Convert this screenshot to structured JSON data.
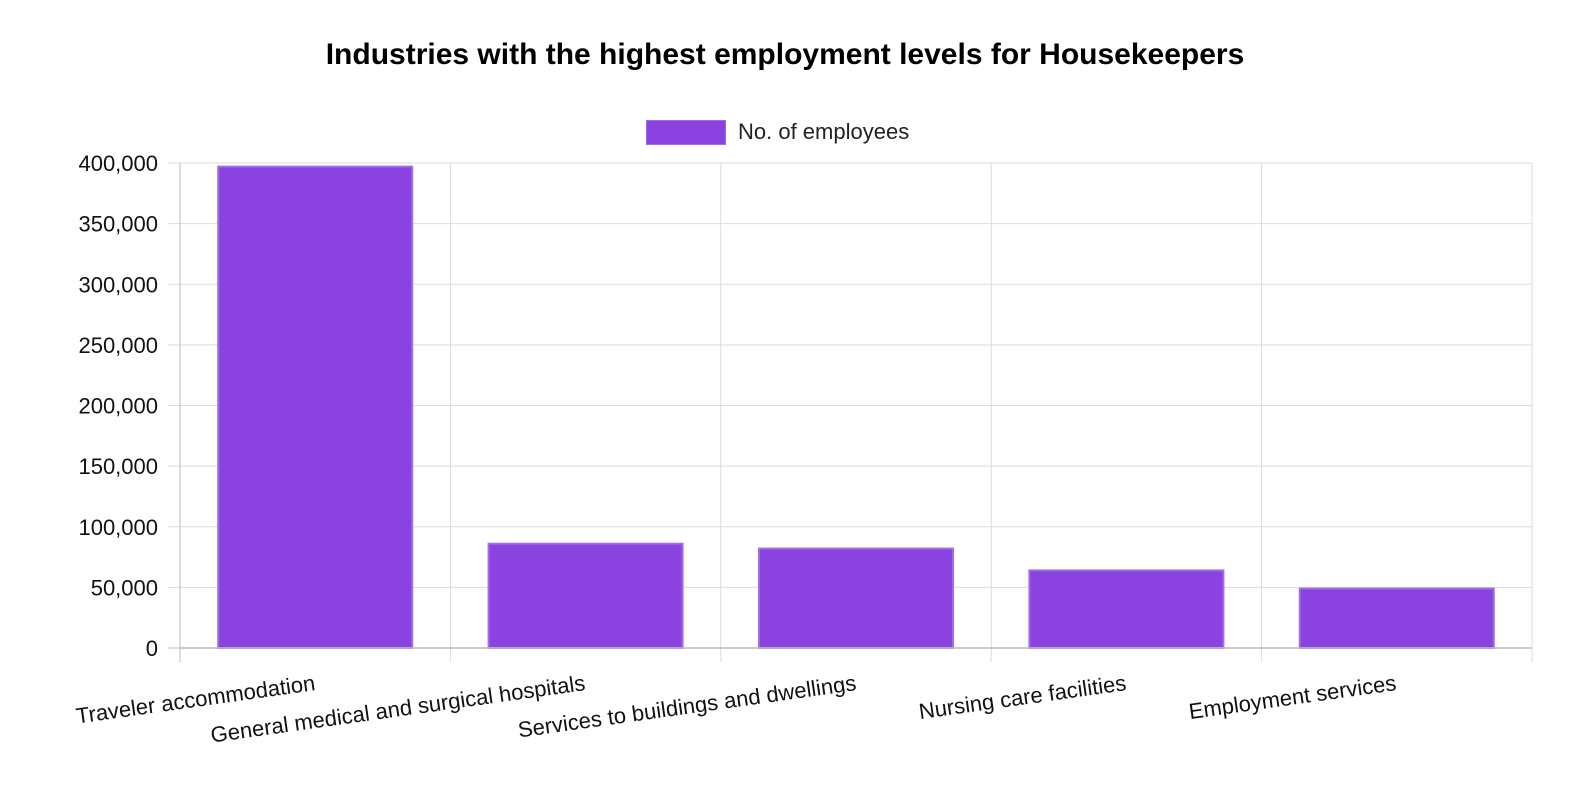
{
  "colors": {
    "bar_fill": "#8A43E0",
    "bar_border": "#a06be6",
    "grid": "#dddddd",
    "axis": "#bbbbbb",
    "text": "#111111"
  },
  "chart_data": {
    "type": "bar",
    "title": "Industries with the highest employment levels for Housekeepers",
    "xlabel": "",
    "ylabel": "",
    "categories": [
      "Traveler accommodation",
      "General medical and surgical hospitals",
      "Services to buildings and dwellings",
      "Nursing care facilities",
      "Employment services"
    ],
    "series": [
      {
        "name": "No. of employees",
        "values": [
          397000,
          86000,
          82000,
          64000,
          49000
        ]
      }
    ],
    "ylim": [
      0,
      400000
    ],
    "y_ticks": [
      0,
      50000,
      100000,
      150000,
      200000,
      250000,
      300000,
      350000,
      400000
    ],
    "y_tick_labels": [
      "0",
      "50,000",
      "100,000",
      "150,000",
      "200,000",
      "250,000",
      "300,000",
      "350,000",
      "400,000"
    ],
    "grid": true,
    "legend_position": "top-center"
  }
}
